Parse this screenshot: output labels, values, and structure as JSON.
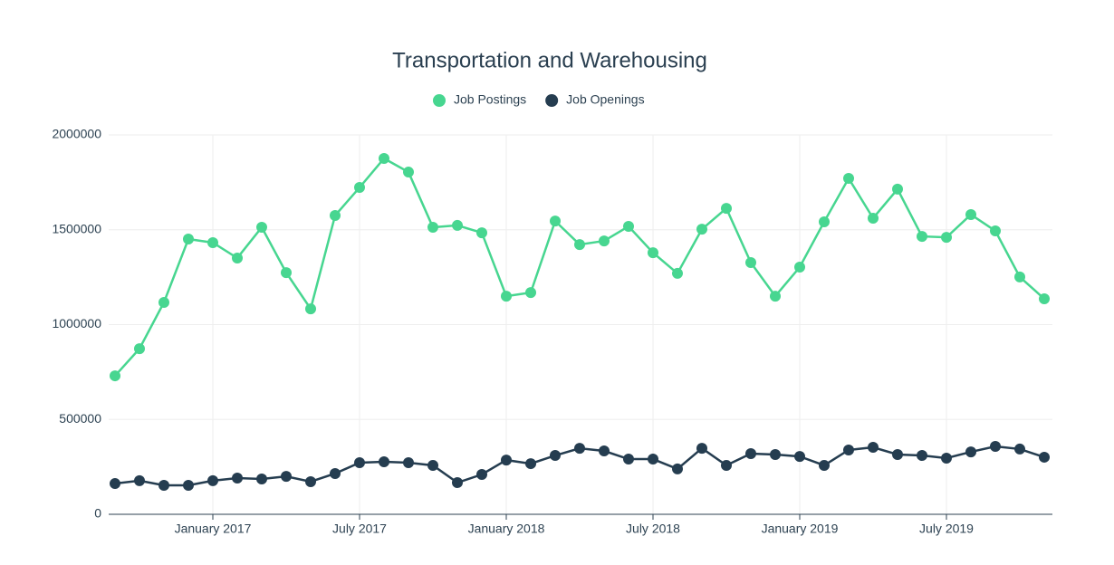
{
  "chart_data": {
    "type": "line",
    "title": "Transportation and Warehousing",
    "x": [
      "2016-09",
      "2016-10",
      "2016-11",
      "2016-12",
      "2017-01",
      "2017-02",
      "2017-03",
      "2017-04",
      "2017-05",
      "2017-06",
      "2017-07",
      "2017-08",
      "2017-09",
      "2017-10",
      "2017-11",
      "2017-12",
      "2018-01",
      "2018-02",
      "2018-03",
      "2018-04",
      "2018-05",
      "2018-06",
      "2018-07",
      "2018-08",
      "2018-09",
      "2018-10",
      "2018-11",
      "2018-12",
      "2019-01",
      "2019-02",
      "2019-03",
      "2019-04",
      "2019-05",
      "2019-06",
      "2019-07",
      "2019-08",
      "2019-09",
      "2019-10",
      "2019-11"
    ],
    "series": [
      {
        "name": "Job Postings",
        "color": "#47d690",
        "values": [
          730000,
          873000,
          1117000,
          1451000,
          1432000,
          1351000,
          1513000,
          1274000,
          1083000,
          1575000,
          1723000,
          1876000,
          1804000,
          1513000,
          1523000,
          1484000,
          1150000,
          1169000,
          1546000,
          1422000,
          1441000,
          1518000,
          1379000,
          1270000,
          1503000,
          1613000,
          1327000,
          1150000,
          1303000,
          1542000,
          1771000,
          1561000,
          1714000,
          1465000,
          1460000,
          1580000,
          1494000,
          1251000,
          1136000
        ]
      },
      {
        "name": "Job Openings",
        "color": "#253d50",
        "values": [
          162000,
          177000,
          153000,
          153000,
          177000,
          191000,
          186000,
          200000,
          172000,
          215000,
          272000,
          277000,
          272000,
          258000,
          167000,
          210000,
          286000,
          267000,
          310000,
          348000,
          334000,
          291000,
          291000,
          239000,
          348000,
          258000,
          320000,
          315000,
          305000,
          258000,
          339000,
          353000,
          315000,
          310000,
          296000,
          329000,
          358000,
          344000,
          301000
        ]
      }
    ],
    "xlim": [
      "2016-09",
      "2019-11"
    ],
    "xticks": [
      {
        "value": "2017-01",
        "label": "January 2017"
      },
      {
        "value": "2017-07",
        "label": "July 2017"
      },
      {
        "value": "2018-01",
        "label": "January 2018"
      },
      {
        "value": "2018-07",
        "label": "July 2018"
      },
      {
        "value": "2019-01",
        "label": "January 2019"
      },
      {
        "value": "2019-07",
        "label": "July 2019"
      }
    ],
    "ylim": [
      0,
      2000000
    ],
    "yticks": [
      0,
      500000,
      1000000,
      1500000,
      2000000
    ],
    "grid": true,
    "legend": "top"
  }
}
